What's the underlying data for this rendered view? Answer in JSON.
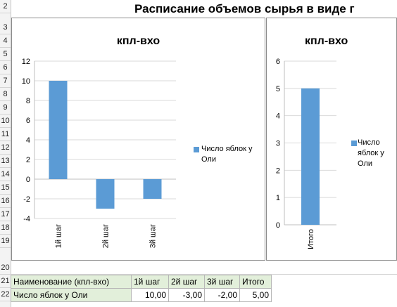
{
  "sheet": {
    "title": "Расписание объемов сырья в виде г",
    "row_numbers": [
      "2",
      "3",
      "4",
      "5",
      "6",
      "7",
      "8",
      "9",
      "10",
      "11",
      "12",
      "13",
      "14",
      "15",
      "16",
      "17",
      "18",
      "19",
      "20",
      "21",
      "22"
    ]
  },
  "colors": {
    "bar": "#5b9bd5",
    "header_fill": "#e2efda",
    "grid": "#d9d9d9"
  },
  "chart_data": [
    {
      "type": "bar",
      "title": "кпл-вхо",
      "categories": [
        "1й  шаг",
        "2й  шаг",
        "3й  шаг"
      ],
      "series": [
        {
          "name": "Число яблок у Оли",
          "values": [
            10,
            -3,
            -2
          ]
        }
      ],
      "ylim": [
        -4,
        12
      ],
      "yticks": [
        "12",
        "10",
        "8",
        "6",
        "4",
        "2",
        "0",
        "-2",
        "-4"
      ],
      "grid": true,
      "legend": "right"
    },
    {
      "type": "bar",
      "title": "кпл-вхо",
      "categories": [
        "Итого"
      ],
      "series": [
        {
          "name": "Число яблок у Оли",
          "values": [
            5
          ]
        }
      ],
      "ylim": [
        0,
        6
      ],
      "yticks": [
        "6",
        "5",
        "4",
        "3",
        "2",
        "1",
        "0"
      ],
      "grid": true,
      "legend": "right"
    }
  ],
  "legend_lines": [
    "Число яблок у",
    "Оли"
  ],
  "legend_lines2": [
    "Число",
    "яблок у",
    "Оли"
  ],
  "table": {
    "headers": [
      "Наименование (кпл-вхо)",
      "1й  шаг",
      "2й  шаг",
      "3й  шаг",
      "Итого"
    ],
    "row": [
      "Число яблок у Оли",
      "10,00",
      "-3,00",
      "-2,00",
      "5,00"
    ]
  }
}
